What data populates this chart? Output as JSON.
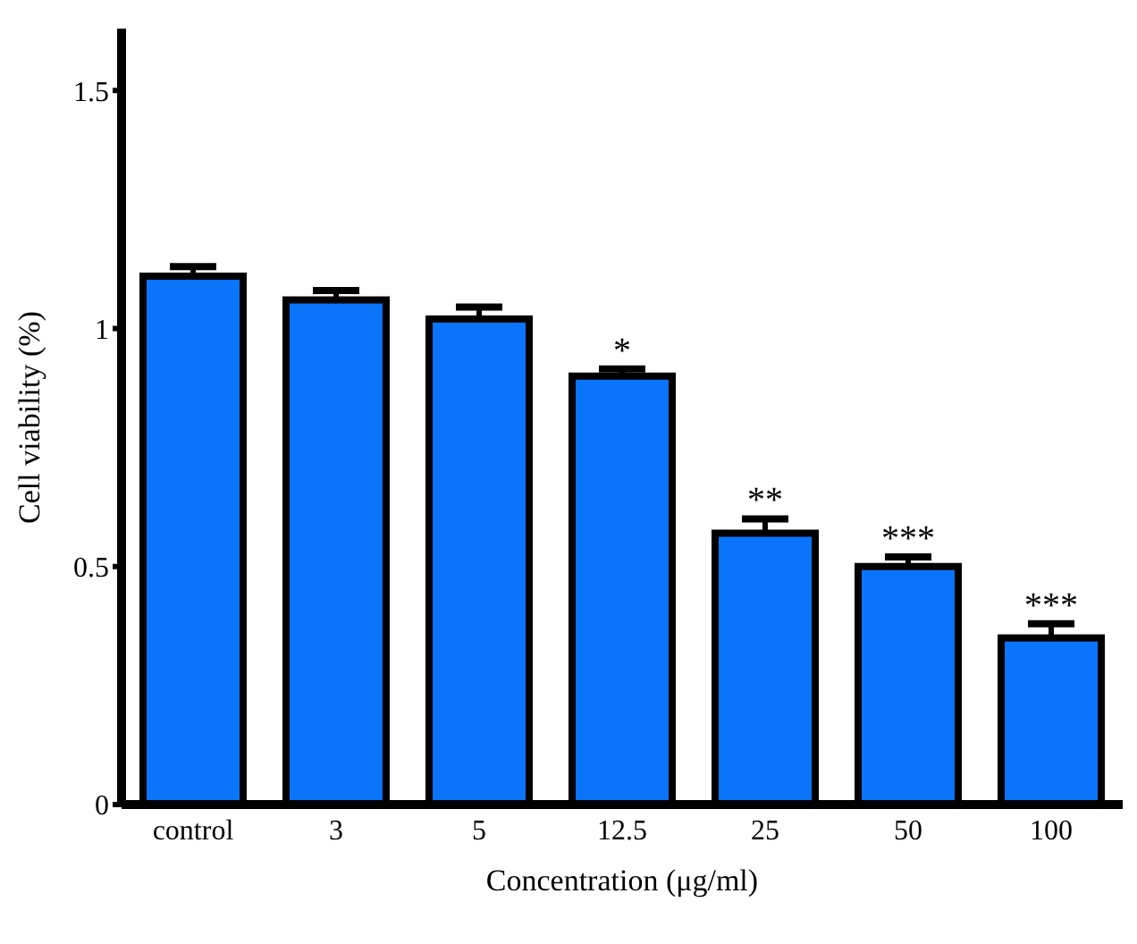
{
  "chart_data": {
    "type": "bar",
    "xlabel": "Concentration (μg/ml)",
    "ylabel": "Cell viability (%)",
    "categories": [
      "control",
      "3",
      "5",
      "12.5",
      "25",
      "50",
      "100"
    ],
    "values": [
      1.11,
      1.06,
      1.02,
      0.9,
      0.57,
      0.5,
      0.35
    ],
    "errors": [
      0.02,
      0.02,
      0.025,
      0.015,
      0.03,
      0.02,
      0.03
    ],
    "color": "#0a74fa",
    "ylim": [
      0,
      1.63
    ],
    "yticks": [
      0,
      0.5,
      1,
      1.5
    ],
    "grid": false,
    "legend": false,
    "annotations": [
      {
        "text": "*",
        "x": "12.5",
        "y": 0.9
      },
      {
        "text": "**",
        "x": "25",
        "y": 0.57
      },
      {
        "text": "***",
        "x": "50",
        "y": 0.5
      },
      {
        "text": "***",
        "x": "100",
        "y": 0.35
      }
    ]
  }
}
